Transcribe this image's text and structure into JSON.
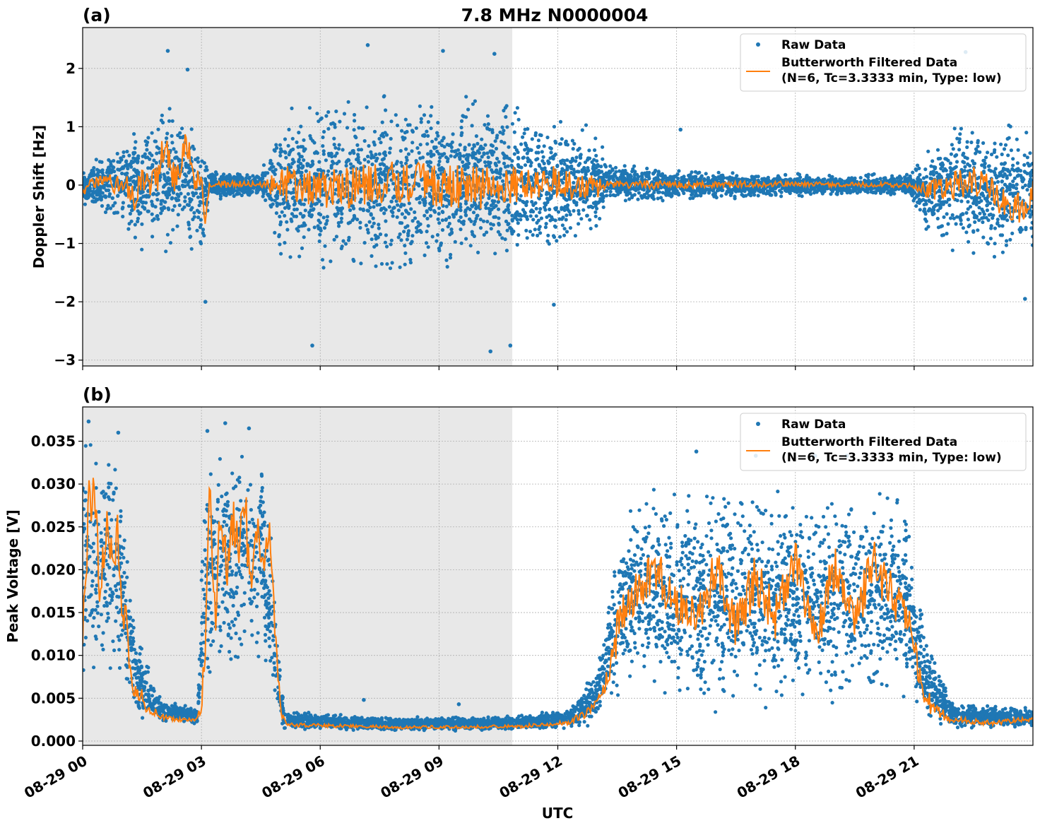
{
  "figure": {
    "title": "7.8 MHz N0000004",
    "xlabel": "UTC",
    "x_ticks": [
      "08-29 00",
      "08-29 03",
      "08-29 06",
      "08-29 09",
      "08-29 12",
      "08-29 15",
      "08-29 18",
      "08-29 21"
    ],
    "colors": {
      "raw": "#1f77b4",
      "filtered": "#ff7f0e",
      "shade": "#e8e8e8",
      "grid": "#b0b0b0"
    }
  },
  "chart_data": [
    {
      "type": "scatter",
      "panel_label": "(a)",
      "ylabel": "Doppler Shift [Hz]",
      "x_range_hours": [
        0,
        24
      ],
      "ylim": [
        -3.1,
        2.7
      ],
      "y_ticks": [
        2,
        1,
        0,
        -1,
        -2,
        -3
      ],
      "y_tick_labels": [
        "2",
        "1",
        "0",
        "−1",
        "−2",
        "−3"
      ],
      "shaded_hours": [
        0,
        10.85
      ],
      "grid": true,
      "legend_position": "top-right",
      "legend": [
        {
          "label": "Raw Data",
          "kind": "marker"
        },
        {
          "label": "Butterworth Filtered Data",
          "label2": "(N=6, Tc=3.3333 min, Type: low)",
          "kind": "line"
        }
      ],
      "series": [
        {
          "name": "Raw Data",
          "kind": "scatter",
          "envelope": [
            {
              "x": 0.0,
              "low": -0.4,
              "high": 0.3
            },
            {
              "x": 1.0,
              "low": -0.7,
              "high": 0.9
            },
            {
              "x": 1.5,
              "low": -1.1,
              "high": 1.0
            },
            {
              "x": 2.0,
              "low": -1.2,
              "high": 1.5
            },
            {
              "x": 2.5,
              "low": -1.0,
              "high": 1.6
            },
            {
              "x": 3.0,
              "low": -1.5,
              "high": 1.0
            },
            {
              "x": 3.2,
              "low": -0.3,
              "high": 0.3
            },
            {
              "x": 4.5,
              "low": -0.2,
              "high": 0.2
            },
            {
              "x": 5.0,
              "low": -1.4,
              "high": 1.4
            },
            {
              "x": 6.0,
              "low": -1.6,
              "high": 1.7
            },
            {
              "x": 8.0,
              "low": -1.7,
              "high": 1.7
            },
            {
              "x": 10.0,
              "low": -1.6,
              "high": 1.7
            },
            {
              "x": 12.0,
              "low": -1.3,
              "high": 1.3
            },
            {
              "x": 13.0,
              "low": -1.0,
              "high": 1.0
            },
            {
              "x": 13.3,
              "low": -0.3,
              "high": 0.4
            },
            {
              "x": 15.0,
              "low": -0.3,
              "high": 0.3
            },
            {
              "x": 18.0,
              "low": -0.2,
              "high": 0.2
            },
            {
              "x": 20.9,
              "low": -0.2,
              "high": 0.2
            },
            {
              "x": 21.3,
              "low": -0.9,
              "high": 0.7
            },
            {
              "x": 22.0,
              "low": -1.2,
              "high": 1.2
            },
            {
              "x": 23.0,
              "low": -1.4,
              "high": 1.1
            },
            {
              "x": 24.0,
              "low": -1.3,
              "high": 1.1
            }
          ],
          "outlier_extremes": [
            {
              "x": 2.15,
              "y": 2.3
            },
            {
              "x": 2.65,
              "y": 1.98
            },
            {
              "x": 3.1,
              "y": -2.0
            },
            {
              "x": 5.8,
              "y": -2.75
            },
            {
              "x": 7.2,
              "y": 2.4
            },
            {
              "x": 9.1,
              "y": 2.3
            },
            {
              "x": 10.4,
              "y": 2.25
            },
            {
              "x": 10.3,
              "y": -2.85
            },
            {
              "x": 10.8,
              "y": -2.75
            },
            {
              "x": 11.9,
              "y": -2.05
            },
            {
              "x": 15.1,
              "y": 0.95
            },
            {
              "x": 22.3,
              "y": 2.28
            },
            {
              "x": 23.8,
              "y": -1.95
            }
          ]
        },
        {
          "name": "Butterworth Filtered Data",
          "kind": "line",
          "points": [
            {
              "x": 0.0,
              "y": -0.1
            },
            {
              "x": 0.3,
              "y": 0.05
            },
            {
              "x": 0.6,
              "y": 0.15
            },
            {
              "x": 0.8,
              "y": -0.05
            },
            {
              "x": 1.0,
              "y": 0.1
            },
            {
              "x": 1.2,
              "y": -0.1
            },
            {
              "x": 1.3,
              "y": -0.25
            },
            {
              "x": 1.5,
              "y": 0.1
            },
            {
              "x": 1.7,
              "y": -0.1
            },
            {
              "x": 1.9,
              "y": 0.2
            },
            {
              "x": 2.1,
              "y": 0.75
            },
            {
              "x": 2.3,
              "y": 0.1
            },
            {
              "x": 2.5,
              "y": 0.3
            },
            {
              "x": 2.6,
              "y": 0.8
            },
            {
              "x": 2.8,
              "y": 0.2
            },
            {
              "x": 3.0,
              "y": -0.1
            },
            {
              "x": 3.1,
              "y": -0.55
            },
            {
              "x": 3.2,
              "y": 0.0
            },
            {
              "x": 4.0,
              "y": 0.02
            },
            {
              "x": 4.7,
              "y": 0.0
            },
            {
              "x": 5.0,
              "y": 0.05
            },
            {
              "x": 6.0,
              "y": -0.1
            },
            {
              "x": 8.0,
              "y": 0.05
            },
            {
              "x": 10.0,
              "y": -0.05
            },
            {
              "x": 12.0,
              "y": 0.05
            },
            {
              "x": 13.0,
              "y": -0.05
            },
            {
              "x": 13.3,
              "y": 0.0
            },
            {
              "x": 18.0,
              "y": 0.02
            },
            {
              "x": 20.9,
              "y": 0.0
            },
            {
              "x": 21.5,
              "y": -0.1
            },
            {
              "x": 22.5,
              "y": 0.1
            },
            {
              "x": 23.3,
              "y": -0.3
            },
            {
              "x": 23.7,
              "y": -0.4
            },
            {
              "x": 24.0,
              "y": -0.1
            }
          ]
        }
      ]
    },
    {
      "type": "scatter",
      "panel_label": "(b)",
      "ylabel": "Peak Voltage [V]",
      "x_range_hours": [
        0,
        24
      ],
      "ylim": [
        -0.0005,
        0.039
      ],
      "y_ticks": [
        0.035,
        0.03,
        0.025,
        0.02,
        0.015,
        0.01,
        0.005,
        0.0
      ],
      "y_tick_labels": [
        "0.035",
        "0.030",
        "0.025",
        "0.020",
        "0.015",
        "0.010",
        "0.005",
        "0.000"
      ],
      "shaded_hours": [
        0,
        10.85
      ],
      "grid": true,
      "legend_position": "top-right",
      "legend": [
        {
          "label": "Raw Data",
          "kind": "marker"
        },
        {
          "label": "Butterworth Filtered Data",
          "label2": "(N=6, Tc=3.3333 min, Type: low)",
          "kind": "line"
        }
      ],
      "series": [
        {
          "name": "Raw Data",
          "kind": "scatter",
          "envelope": [
            {
              "x": 0.0,
              "low": 0.004,
              "high": 0.036
            },
            {
              "x": 0.5,
              "low": 0.007,
              "high": 0.035
            },
            {
              "x": 0.9,
              "low": 0.005,
              "high": 0.035
            },
            {
              "x": 1.1,
              "low": 0.004,
              "high": 0.025
            },
            {
              "x": 1.3,
              "low": 0.003,
              "high": 0.015
            },
            {
              "x": 1.6,
              "low": 0.002,
              "high": 0.01
            },
            {
              "x": 2.0,
              "low": 0.002,
              "high": 0.005
            },
            {
              "x": 2.9,
              "low": 0.002,
              "high": 0.004
            },
            {
              "x": 3.1,
              "low": 0.004,
              "high": 0.035
            },
            {
              "x": 3.5,
              "low": 0.006,
              "high": 0.036
            },
            {
              "x": 4.0,
              "low": 0.007,
              "high": 0.036
            },
            {
              "x": 4.6,
              "low": 0.006,
              "high": 0.035
            },
            {
              "x": 4.9,
              "low": 0.003,
              "high": 0.015
            },
            {
              "x": 5.1,
              "low": 0.0013,
              "high": 0.0035
            },
            {
              "x": 8.0,
              "low": 0.0012,
              "high": 0.0028
            },
            {
              "x": 11.0,
              "low": 0.0012,
              "high": 0.003
            },
            {
              "x": 12.3,
              "low": 0.0014,
              "high": 0.004
            },
            {
              "x": 13.0,
              "low": 0.0016,
              "high": 0.009
            },
            {
              "x": 13.5,
              "low": 0.004,
              "high": 0.026
            },
            {
              "x": 14.0,
              "low": 0.005,
              "high": 0.03
            },
            {
              "x": 16.0,
              "low": 0.003,
              "high": 0.031
            },
            {
              "x": 18.0,
              "low": 0.003,
              "high": 0.03
            },
            {
              "x": 20.0,
              "low": 0.003,
              "high": 0.031
            },
            {
              "x": 20.8,
              "low": 0.003,
              "high": 0.03
            },
            {
              "x": 21.1,
              "low": 0.002,
              "high": 0.018
            },
            {
              "x": 21.5,
              "low": 0.0015,
              "high": 0.01
            },
            {
              "x": 22.0,
              "low": 0.0013,
              "high": 0.0045
            },
            {
              "x": 24.0,
              "low": 0.0015,
              "high": 0.004
            }
          ],
          "outlier_extremes": [
            {
              "x": 0.15,
              "y": 0.0373
            },
            {
              "x": 0.9,
              "y": 0.036
            },
            {
              "x": 3.15,
              "y": 0.0362
            },
            {
              "x": 3.6,
              "y": 0.0371
            },
            {
              "x": 4.2,
              "y": 0.0365
            },
            {
              "x": 7.1,
              "y": 0.0048
            },
            {
              "x": 9.5,
              "y": 0.0043
            },
            {
              "x": 15.5,
              "y": 0.0338
            },
            {
              "x": 17.0,
              "y": 0.0333
            },
            {
              "x": 18.5,
              "y": 0.0333
            },
            {
              "x": 19.3,
              "y": 0.0333
            }
          ]
        },
        {
          "name": "Butterworth Filtered Data",
          "kind": "line",
          "points": [
            {
              "x": 0.0,
              "y": 0.01
            },
            {
              "x": 0.15,
              "y": 0.028
            },
            {
              "x": 0.3,
              "y": 0.03
            },
            {
              "x": 0.45,
              "y": 0.016
            },
            {
              "x": 0.6,
              "y": 0.027
            },
            {
              "x": 0.75,
              "y": 0.021
            },
            {
              "x": 0.9,
              "y": 0.025
            },
            {
              "x": 1.0,
              "y": 0.012
            },
            {
              "x": 1.1,
              "y": 0.017
            },
            {
              "x": 1.2,
              "y": 0.007
            },
            {
              "x": 1.4,
              "y": 0.006
            },
            {
              "x": 1.6,
              "y": 0.004
            },
            {
              "x": 2.0,
              "y": 0.0028
            },
            {
              "x": 2.5,
              "y": 0.0025
            },
            {
              "x": 2.9,
              "y": 0.0026
            },
            {
              "x": 3.1,
              "y": 0.008
            },
            {
              "x": 3.2,
              "y": 0.032
            },
            {
              "x": 3.35,
              "y": 0.015
            },
            {
              "x": 3.5,
              "y": 0.028
            },
            {
              "x": 3.65,
              "y": 0.018
            },
            {
              "x": 3.8,
              "y": 0.026
            },
            {
              "x": 3.95,
              "y": 0.022
            },
            {
              "x": 4.1,
              "y": 0.028
            },
            {
              "x": 4.25,
              "y": 0.016
            },
            {
              "x": 4.4,
              "y": 0.026
            },
            {
              "x": 4.55,
              "y": 0.02
            },
            {
              "x": 4.7,
              "y": 0.026
            },
            {
              "x": 4.85,
              "y": 0.014
            },
            {
              "x": 5.0,
              "y": 0.003
            },
            {
              "x": 5.2,
              "y": 0.0019
            },
            {
              "x": 8.0,
              "y": 0.0016
            },
            {
              "x": 11.0,
              "y": 0.0017
            },
            {
              "x": 12.3,
              "y": 0.0022
            },
            {
              "x": 13.0,
              "y": 0.004
            },
            {
              "x": 13.3,
              "y": 0.008
            },
            {
              "x": 13.6,
              "y": 0.015
            },
            {
              "x": 14.0,
              "y": 0.018
            },
            {
              "x": 14.5,
              "y": 0.02
            },
            {
              "x": 15.0,
              "y": 0.016
            },
            {
              "x": 15.5,
              "y": 0.014
            },
            {
              "x": 16.0,
              "y": 0.02
            },
            {
              "x": 16.5,
              "y": 0.013
            },
            {
              "x": 17.0,
              "y": 0.019
            },
            {
              "x": 17.5,
              "y": 0.014
            },
            {
              "x": 18.0,
              "y": 0.022
            },
            {
              "x": 18.5,
              "y": 0.012
            },
            {
              "x": 19.0,
              "y": 0.02
            },
            {
              "x": 19.5,
              "y": 0.015
            },
            {
              "x": 20.0,
              "y": 0.021
            },
            {
              "x": 20.5,
              "y": 0.016
            },
            {
              "x": 20.9,
              "y": 0.013
            },
            {
              "x": 21.2,
              "y": 0.006
            },
            {
              "x": 21.5,
              "y": 0.0035
            },
            {
              "x": 22.0,
              "y": 0.0025
            },
            {
              "x": 23.0,
              "y": 0.0021
            },
            {
              "x": 24.0,
              "y": 0.0026
            }
          ]
        }
      ]
    }
  ]
}
